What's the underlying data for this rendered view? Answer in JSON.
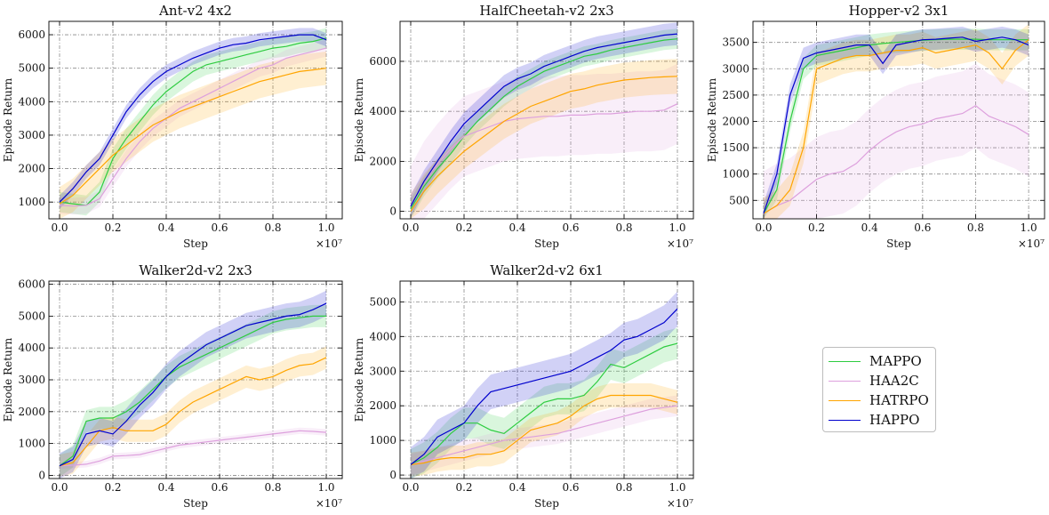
{
  "series_colors": {
    "MAPPO": "#2ecc40",
    "HAA2C": "#dda0dd",
    "HATRPO": "#ffa500",
    "HAPPO": "#0000cd"
  },
  "legend": [
    "MAPPO",
    "HAA2C",
    "HATRPO",
    "HAPPO"
  ],
  "chart_data": [
    {
      "type": "line",
      "title": "Ant-v2 4x2",
      "xlabel": "Step",
      "ylabel": "Episode Return",
      "x_multiplier_label": "×10⁷",
      "xlim": [
        -0.04,
        1.06
      ],
      "ylim": [
        500,
        6400
      ],
      "xticks": [
        0.0,
        0.2,
        0.4,
        0.6,
        0.8,
        1.0
      ],
      "xtick_labels": [
        "0.0",
        "0.2",
        "0.4",
        "0.6",
        "0.8",
        "1.0"
      ],
      "yticks": [
        1000,
        2000,
        3000,
        4000,
        5000,
        6000
      ],
      "ytick_labels": [
        "1000",
        "2000",
        "3000",
        "4000",
        "5000",
        "6000"
      ],
      "x": [
        0,
        0.05,
        0.1,
        0.15,
        0.2,
        0.25,
        0.3,
        0.35,
        0.4,
        0.45,
        0.5,
        0.55,
        0.6,
        0.65,
        0.7,
        0.75,
        0.8,
        0.85,
        0.9,
        0.95,
        1.0
      ],
      "series": [
        {
          "name": "MAPPO",
          "values": [
            1000,
            950,
            900,
            1300,
            2300,
            2900,
            3400,
            3900,
            4300,
            4600,
            4900,
            5100,
            5200,
            5300,
            5400,
            5500,
            5600,
            5650,
            5750,
            5800,
            5900
          ],
          "band": 300
        },
        {
          "name": "HAA2C",
          "values": [
            900,
            880,
            900,
            1100,
            1700,
            2300,
            2800,
            3200,
            3500,
            3800,
            4000,
            4200,
            4400,
            4600,
            4800,
            5000,
            5100,
            5300,
            5400,
            5500,
            5600
          ],
          "band": 250
        },
        {
          "name": "HATRPO",
          "values": [
            950,
            1200,
            1600,
            2000,
            2400,
            2700,
            3000,
            3300,
            3500,
            3700,
            3850,
            4000,
            4150,
            4300,
            4450,
            4600,
            4700,
            4800,
            4900,
            4950,
            5000
          ],
          "band": 500
        },
        {
          "name": "HAPPO",
          "values": [
            1000,
            1400,
            1900,
            2300,
            3000,
            3700,
            4200,
            4600,
            4900,
            5100,
            5300,
            5450,
            5600,
            5700,
            5750,
            5850,
            5900,
            5950,
            6000,
            6000,
            5850
          ],
          "band": 200
        }
      ]
    },
    {
      "type": "line",
      "title": "HalfCheetah-v2 2x3",
      "xlabel": "Step",
      "ylabel": "Episode Return",
      "x_multiplier_label": "×10⁷",
      "xlim": [
        -0.04,
        1.06
      ],
      "ylim": [
        -300,
        7600
      ],
      "xticks": [
        0.0,
        0.2,
        0.4,
        0.6,
        0.8,
        1.0
      ],
      "xtick_labels": [
        "0.0",
        "0.2",
        "0.4",
        "0.6",
        "0.8",
        "1.0"
      ],
      "yticks": [
        0,
        2000,
        4000,
        6000
      ],
      "ytick_labels": [
        "0",
        "2000",
        "4000",
        "6000"
      ],
      "x": [
        0,
        0.05,
        0.1,
        0.15,
        0.2,
        0.25,
        0.3,
        0.35,
        0.4,
        0.45,
        0.5,
        0.55,
        0.6,
        0.65,
        0.7,
        0.75,
        0.8,
        0.85,
        0.9,
        0.95,
        1.0
      ],
      "series": [
        {
          "name": "MAPPO",
          "values": [
            100,
            1000,
            1700,
            2300,
            3000,
            3600,
            4100,
            4600,
            5000,
            5300,
            5600,
            5800,
            6000,
            6200,
            6300,
            6450,
            6550,
            6650,
            6750,
            6850,
            6900
          ],
          "band": 400
        },
        {
          "name": "HAA2C",
          "values": [
            200,
            1200,
            1900,
            2500,
            3000,
            3200,
            3400,
            3600,
            3700,
            3750,
            3800,
            3800,
            3850,
            3850,
            3900,
            3900,
            3950,
            4000,
            4000,
            4050,
            4300
          ],
          "band": 1600
        },
        {
          "name": "HATRPO",
          "values": [
            0,
            800,
            1400,
            1900,
            2400,
            2800,
            3200,
            3600,
            3900,
            4200,
            4400,
            4600,
            4800,
            4900,
            5050,
            5150,
            5250,
            5300,
            5350,
            5380,
            5400
          ],
          "band": 700
        },
        {
          "name": "HAPPO",
          "values": [
            200,
            1200,
            2000,
            2800,
            3500,
            4000,
            4500,
            5000,
            5300,
            5500,
            5800,
            6000,
            6200,
            6400,
            6550,
            6650,
            6750,
            6850,
            6950,
            7050,
            7100
          ],
          "band": 450
        }
      ]
    },
    {
      "type": "line",
      "title": "Hopper-v2 3x1",
      "xlabel": "Step",
      "ylabel": "Episode Return",
      "x_multiplier_label": "×10⁷",
      "xlim": [
        -0.04,
        1.06
      ],
      "ylim": [
        150,
        3900
      ],
      "xticks": [
        0.0,
        0.2,
        0.4,
        0.6,
        0.8,
        1.0
      ],
      "xtick_labels": [
        "0.0",
        "0.2",
        "0.4",
        "0.6",
        "0.8",
        "1.0"
      ],
      "yticks": [
        500,
        1000,
        1500,
        2000,
        2500,
        3000,
        3500
      ],
      "ytick_labels": [
        "500",
        "1000",
        "1500",
        "2000",
        "2500",
        "3000",
        "3500"
      ],
      "x": [
        0,
        0.05,
        0.1,
        0.15,
        0.2,
        0.25,
        0.3,
        0.35,
        0.4,
        0.45,
        0.5,
        0.55,
        0.6,
        0.65,
        0.7,
        0.75,
        0.8,
        0.85,
        0.9,
        0.95,
        1.0
      ],
      "series": [
        {
          "name": "MAPPO",
          "values": [
            250,
            700,
            2000,
            3000,
            3250,
            3300,
            3350,
            3400,
            3450,
            3480,
            3500,
            3520,
            3540,
            3550,
            3560,
            3560,
            3560,
            3550,
            3550,
            3550,
            3550
          ],
          "band": 200
        },
        {
          "name": "HAA2C",
          "values": [
            250,
            400,
            500,
            700,
            900,
            1000,
            1050,
            1200,
            1450,
            1650,
            1800,
            1900,
            1950,
            2050,
            2100,
            2150,
            2300,
            2100,
            2000,
            1900,
            1750
          ],
          "band": 800
        },
        {
          "name": "HATRPO",
          "values": [
            250,
            400,
            700,
            1500,
            3000,
            3100,
            3200,
            3250,
            3250,
            3300,
            3350,
            3350,
            3400,
            3300,
            3350,
            3400,
            3450,
            3300,
            3000,
            3350,
            3550
          ],
          "band": 300
        },
        {
          "name": "HAPPO",
          "values": [
            250,
            1000,
            2500,
            3200,
            3300,
            3350,
            3400,
            3450,
            3450,
            3100,
            3450,
            3500,
            3550,
            3560,
            3580,
            3600,
            3520,
            3560,
            3600,
            3550,
            3450
          ],
          "band": 200
        }
      ]
    },
    {
      "type": "line",
      "title": "Walker2d-v2 2x3",
      "xlabel": "Step",
      "ylabel": "Episode Return",
      "x_multiplier_label": "×10⁷",
      "xlim": [
        -0.04,
        1.06
      ],
      "ylim": [
        -100,
        6100
      ],
      "xticks": [
        0.0,
        0.2,
        0.4,
        0.6,
        0.8,
        1.0
      ],
      "xtick_labels": [
        "0.0",
        "0.2",
        "0.4",
        "0.6",
        "0.8",
        "1.0"
      ],
      "yticks": [
        0,
        1000,
        2000,
        3000,
        4000,
        5000,
        6000
      ],
      "ytick_labels": [
        "0",
        "1000",
        "2000",
        "3000",
        "4000",
        "5000",
        "6000"
      ],
      "x": [
        0,
        0.05,
        0.1,
        0.15,
        0.2,
        0.25,
        0.3,
        0.35,
        0.4,
        0.45,
        0.5,
        0.55,
        0.6,
        0.65,
        0.7,
        0.75,
        0.8,
        0.85,
        0.9,
        0.95,
        1.0
      ],
      "series": [
        {
          "name": "MAPPO",
          "values": [
            300,
            600,
            1700,
            1800,
            1800,
            2000,
            2300,
            2700,
            3100,
            3400,
            3600,
            3800,
            4000,
            4200,
            4400,
            4600,
            4800,
            4900,
            4950,
            5000,
            5000
          ],
          "band": 350
        },
        {
          "name": "HAA2C",
          "values": [
            300,
            320,
            350,
            450,
            600,
            620,
            650,
            750,
            850,
            950,
            1000,
            1050,
            1100,
            1150,
            1200,
            1250,
            1300,
            1350,
            1400,
            1380,
            1350
          ],
          "band": 100
        },
        {
          "name": "HATRPO",
          "values": [
            300,
            400,
            900,
            1400,
            1500,
            1400,
            1400,
            1400,
            1600,
            2000,
            2300,
            2500,
            2700,
            2900,
            3100,
            3000,
            3100,
            3300,
            3450,
            3500,
            3700
          ],
          "band": 350
        },
        {
          "name": "HAPPO",
          "values": [
            300,
            500,
            1300,
            1400,
            1300,
            1700,
            2200,
            2600,
            3100,
            3500,
            3800,
            4100,
            4300,
            4500,
            4700,
            4800,
            4900,
            5000,
            5050,
            5200,
            5400
          ],
          "band": 400
        }
      ]
    },
    {
      "type": "line",
      "title": "Walker2d-v2 6x1",
      "xlabel": "Step",
      "ylabel": "Episode Return",
      "x_multiplier_label": "×10⁷",
      "xlim": [
        -0.04,
        1.06
      ],
      "ylim": [
        -100,
        5600
      ],
      "xticks": [
        0.0,
        0.2,
        0.4,
        0.6,
        0.8,
        1.0
      ],
      "xtick_labels": [
        "0.0",
        "0.2",
        "0.4",
        "0.6",
        "0.8",
        "1.0"
      ],
      "yticks": [
        0,
        1000,
        2000,
        3000,
        4000,
        5000
      ],
      "ytick_labels": [
        "0",
        "1000",
        "2000",
        "3000",
        "4000",
        "5000"
      ],
      "x": [
        0,
        0.05,
        0.1,
        0.15,
        0.2,
        0.25,
        0.3,
        0.35,
        0.4,
        0.45,
        0.5,
        0.55,
        0.6,
        0.65,
        0.7,
        0.75,
        0.8,
        0.85,
        0.9,
        0.95,
        1.0
      ],
      "series": [
        {
          "name": "MAPPO",
          "values": [
            300,
            500,
            800,
            1200,
            1500,
            1500,
            1300,
            1200,
            1500,
            1800,
            2100,
            2200,
            2200,
            2300,
            2700,
            3200,
            3100,
            3300,
            3500,
            3700,
            3800
          ],
          "band": 450
        },
        {
          "name": "HAA2C",
          "values": [
            300,
            400,
            500,
            600,
            700,
            800,
            900,
            1000,
            1050,
            1100,
            1150,
            1200,
            1300,
            1400,
            1500,
            1600,
            1700,
            1800,
            1900,
            1950,
            2000
          ],
          "band": 300
        },
        {
          "name": "HATRPO",
          "values": [
            300,
            350,
            450,
            500,
            500,
            600,
            600,
            700,
            1000,
            1300,
            1400,
            1500,
            1700,
            2000,
            2200,
            2300,
            2300,
            2300,
            2300,
            2200,
            2100
          ],
          "band": 350
        },
        {
          "name": "HAPPO",
          "values": [
            300,
            600,
            1100,
            1300,
            1500,
            2000,
            2400,
            2500,
            2600,
            2700,
            2800,
            2900,
            3000,
            3200,
            3400,
            3600,
            3900,
            4000,
            4200,
            4400,
            4800
          ],
          "band": 500
        }
      ]
    }
  ]
}
